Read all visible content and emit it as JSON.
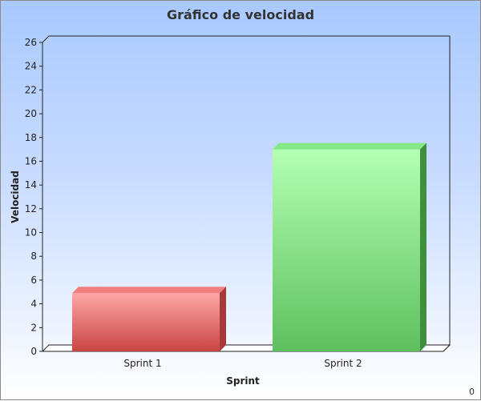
{
  "chart_data": {
    "type": "bar",
    "title": "Gráfico de velocidad",
    "categories": [
      "Sprint 1",
      "Sprint 2"
    ],
    "values": [
      4.9,
      17
    ],
    "xlabel": "Sprint",
    "ylabel": "Velocidad",
    "ylim": [
      0,
      26
    ],
    "yticks": [
      0,
      2,
      4,
      6,
      8,
      10,
      12,
      14,
      16,
      18,
      20,
      22,
      24,
      26
    ],
    "grid": false,
    "legend": "none",
    "bar_colors": [
      "#e05a5a",
      "#6fd36f"
    ]
  },
  "corner_label": "0"
}
